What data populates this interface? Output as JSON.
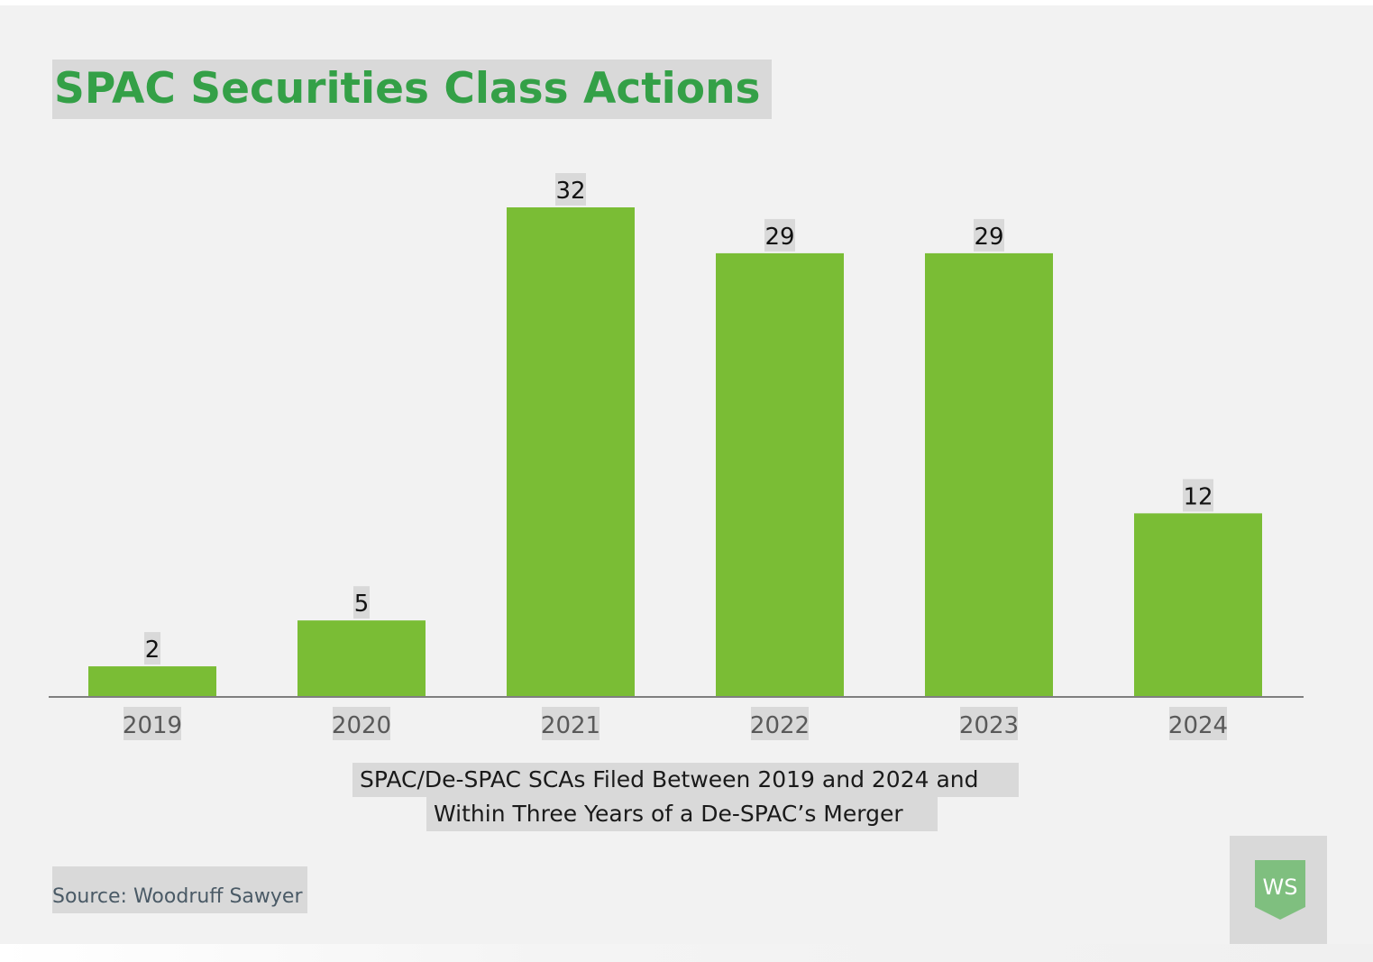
{
  "chart_data": {
    "type": "bar",
    "title": "SPAC Securities Class Actions",
    "categories": [
      "2019",
      "2020",
      "2021",
      "2022",
      "2023",
      "2024"
    ],
    "values": [
      2,
      5,
      32,
      29,
      29,
      12
    ],
    "xlabel_lines": [
      "SPAC/De-SPAC SCAs Filed Between 2019 and 2024 and",
      "Within Three Years of a De-SPAC’s Merger"
    ],
    "ylabel": "",
    "ylim": [
      0,
      32
    ],
    "grid": false,
    "legend": "none",
    "bar_color": "#7abd35",
    "source": "Source: Woodruff Sawyer"
  },
  "brand": {
    "title_color": "#34a047",
    "logo_text": "WS",
    "logo_color": "#7fbf7f"
  }
}
